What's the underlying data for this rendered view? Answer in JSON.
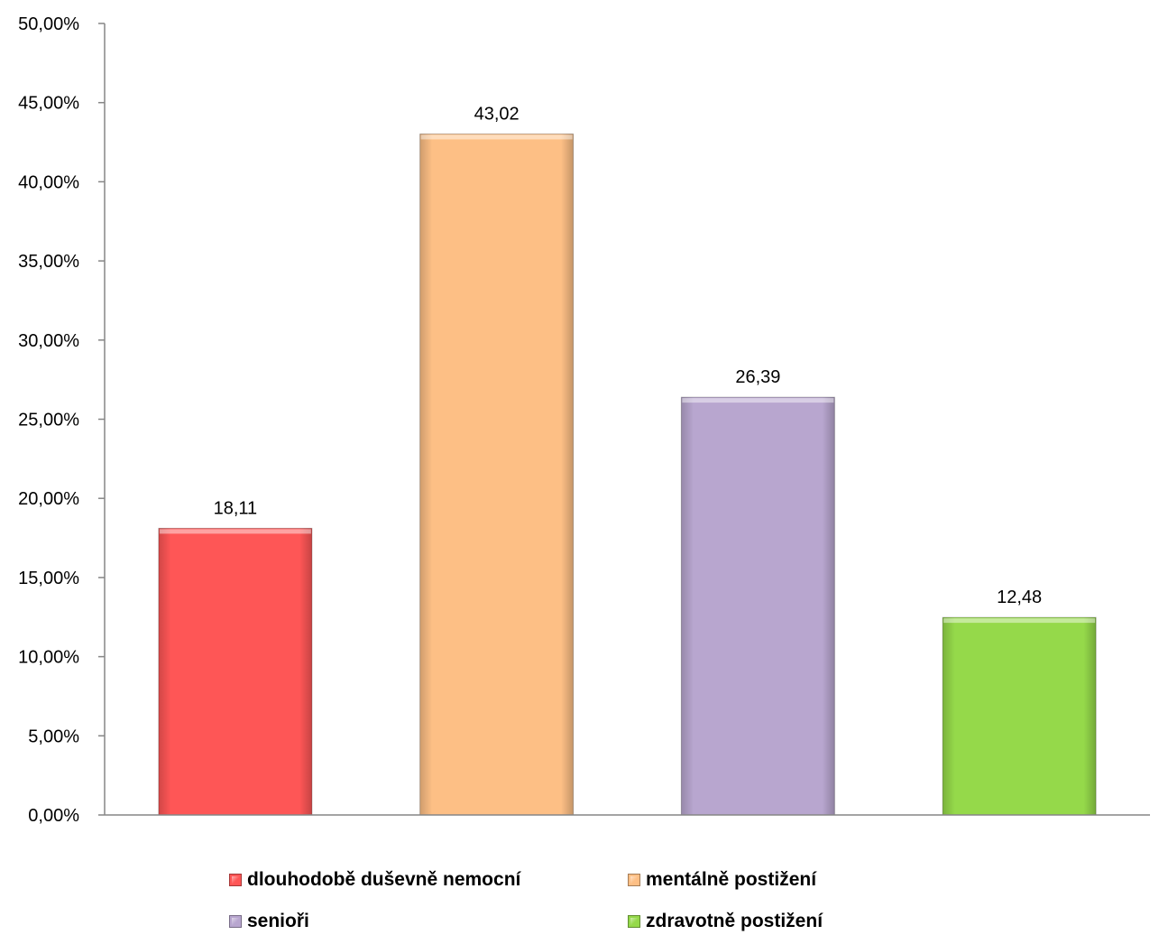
{
  "chart_data": {
    "type": "bar",
    "categories": [
      "dlouhodobě duševně nemocní",
      "mentálně postižení",
      "senioři",
      "zdravotně postižení"
    ],
    "values": [
      18.11,
      43.02,
      26.39,
      12.48
    ],
    "data_labels": [
      "18,11",
      "43,02",
      "26,39",
      "12,48"
    ],
    "colors": [
      "#fe5656",
      "#fdbf85",
      "#b8a6cf",
      "#95d94a"
    ],
    "ylim": [
      0,
      50
    ],
    "y_ticks": [
      0,
      5,
      10,
      15,
      20,
      25,
      30,
      35,
      40,
      45,
      50
    ],
    "y_tick_labels": [
      "0,00%",
      "5,00%",
      "10,00%",
      "15,00%",
      "20,00%",
      "25,00%",
      "30,00%",
      "35,00%",
      "40,00%",
      "45,00%",
      "50,00%"
    ],
    "grid": false,
    "legend": {
      "placement": "bottom",
      "entries": [
        "dlouhodobě duševně nemocní",
        "mentálně postižení",
        "senioři",
        "zdravotně postižení"
      ]
    }
  }
}
